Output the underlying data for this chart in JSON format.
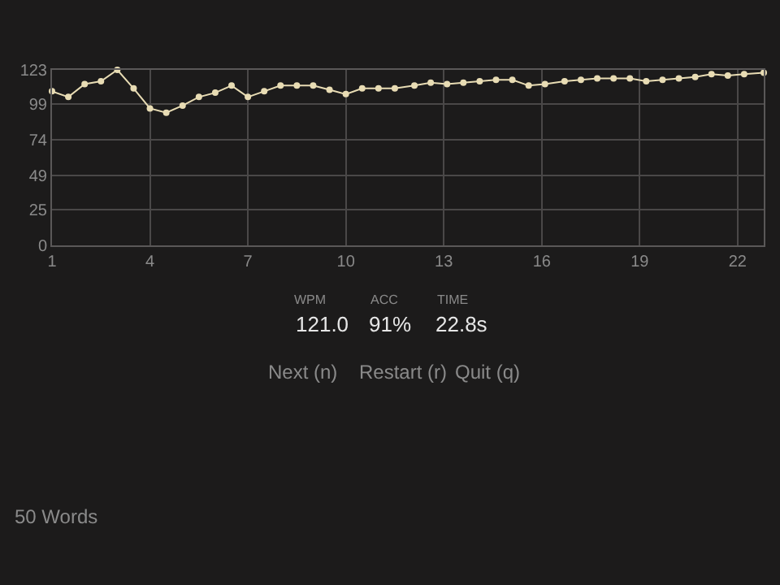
{
  "chart_data": {
    "type": "line",
    "color": "#e8dcb4",
    "marker": "circle",
    "grid": true,
    "x": [
      1,
      1.5,
      2,
      2.5,
      3,
      3.5,
      4,
      4.5,
      5,
      5.5,
      6,
      6.5,
      7,
      7.5,
      8,
      8.5,
      9,
      9.5,
      10,
      10.5,
      11,
      11.5,
      12.1,
      12.6,
      13.1,
      13.6,
      14.1,
      14.6,
      15.1,
      15.6,
      16.1,
      16.7,
      17.2,
      17.7,
      18.2,
      18.7,
      19.2,
      19.7,
      20.2,
      20.7,
      21.2,
      21.7,
      22.2,
      22.8
    ],
    "values": [
      108,
      104,
      113,
      115,
      123,
      110,
      96,
      93,
      98,
      104,
      107,
      112,
      104,
      108,
      112,
      112,
      112,
      109,
      106,
      110,
      110,
      110,
      112,
      114,
      113,
      114,
      115,
      116,
      116,
      112,
      113,
      115,
      116,
      117,
      117,
      117,
      115,
      116,
      117,
      118,
      120,
      119,
      120,
      121
    ],
    "xlim": [
      1,
      22.8
    ],
    "xticks": [
      1,
      4,
      7,
      10,
      13,
      16,
      19,
      22
    ],
    "ylim": [
      0,
      123
    ],
    "yticks": [
      0,
      25,
      49,
      74,
      99,
      123
    ],
    "annotations": [
      "WPM",
      "ACC",
      "TIME",
      "121.0",
      "91%",
      "22.8s",
      "Next (n)",
      "Restart (r)",
      "Quit (q)",
      "50 Words"
    ]
  }
}
